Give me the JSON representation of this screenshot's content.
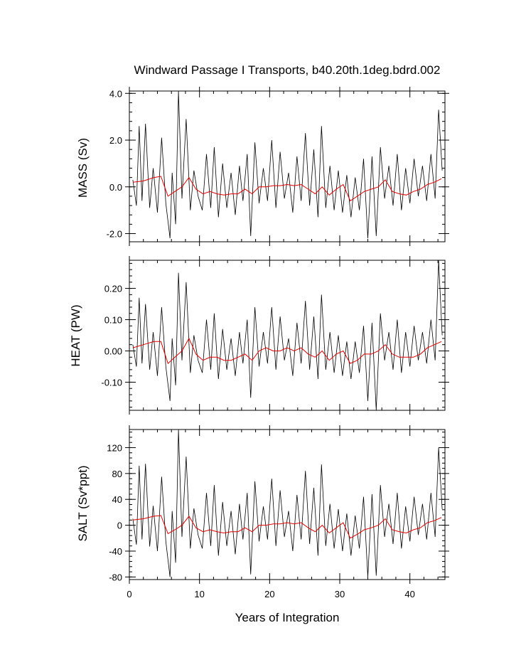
{
  "figure": {
    "title": "Windward Passage I Transports, b40.20th.1deg.bdrd.002",
    "xlabel": "Years of Integration",
    "colors": {
      "raw": "#000000",
      "smooth": "#e00000"
    }
  },
  "chart_data": [
    {
      "type": "line",
      "ylabel": "MASS (Sv)",
      "xlim": [
        0,
        45
      ],
      "ylim": [
        -2.35,
        4.1
      ],
      "xticks": [
        0,
        10,
        20,
        30,
        40
      ],
      "yticks": [
        -2.0,
        0.0,
        2.0,
        4.0
      ],
      "ytick_labels": [
        "-2.0",
        "0.0",
        "2.0",
        "4.0"
      ],
      "show_xtick_labels": false,
      "series": [
        {
          "role": "monthly",
          "x": [
            0.5,
            1.0,
            1.4,
            1.8,
            2.3,
            2.9,
            3.4,
            4.0,
            4.6,
            5.2,
            5.8,
            6.1,
            6.6,
            7.0,
            7.5,
            8.1,
            8.7,
            9.2,
            9.8,
            10.4,
            11.0,
            11.6,
            12.1,
            12.7,
            13.3,
            13.9,
            14.5,
            15.1,
            15.7,
            16.2,
            16.8,
            17.3,
            17.9,
            18.5,
            19.1,
            19.7,
            20.3,
            20.9,
            21.5,
            22.1,
            22.7,
            23.3,
            23.9,
            24.5,
            25.1,
            25.7,
            26.3,
            26.9,
            27.4,
            28.0,
            28.6,
            29.2,
            29.8,
            30.4,
            31.0,
            31.6,
            32.2,
            32.8,
            33.4,
            34.0,
            34.6,
            35.2,
            35.8,
            36.4,
            37.0,
            37.6,
            38.2,
            38.8,
            39.4,
            40.0,
            40.6,
            41.2,
            41.8,
            42.4,
            43.0,
            43.6,
            44.1,
            44.6
          ],
          "values": [
            0.3,
            -0.8,
            2.6,
            -0.6,
            2.7,
            -0.9,
            0.8,
            -1.1,
            2.1,
            -0.7,
            -2.2,
            0.6,
            -1.6,
            4.1,
            -0.5,
            2.9,
            -1.0,
            0.7,
            -0.4,
            -1.0,
            1.4,
            -0.9,
            1.7,
            -1.3,
            1.0,
            -0.9,
            0.6,
            -1.2,
            0.9,
            -0.6,
            1.4,
            -2.1,
            1.9,
            -0.7,
            0.8,
            -0.6,
            2.0,
            -0.9,
            1.5,
            -0.5,
            0.6,
            -1.1,
            1.3,
            -0.6,
            2.3,
            -0.8,
            1.6,
            -1.3,
            2.6,
            -0.9,
            0.9,
            -1.0,
            0.7,
            -1.1,
            0.5,
            -1.3,
            0.4,
            -1.0,
            1.2,
            -2.2,
            1.3,
            -2.1,
            1.7,
            -0.5,
            0.9,
            -0.8,
            1.4,
            -1.0,
            0.8,
            -0.7,
            1.2,
            -0.4,
            0.9,
            -0.6,
            1.4,
            -0.5,
            3.3,
            0.7
          ]
        },
        {
          "role": "annual-mean",
          "x": [
            0.5,
            2.0,
            3.5,
            4.5,
            5.5,
            6.5,
            7.5,
            8.5,
            9.5,
            10.5,
            11.5,
            12.5,
            13.5,
            14.5,
            15.5,
            16.5,
            17.5,
            18.5,
            19.5,
            20.5,
            21.5,
            22.5,
            23.5,
            24.5,
            25.5,
            26.5,
            27.5,
            28.5,
            29.5,
            30.5,
            31.5,
            32.5,
            33.5,
            34.5,
            35.5,
            36.5,
            37.5,
            38.5,
            39.5,
            40.5,
            41.5,
            42.5,
            43.5,
            44.5
          ],
          "values": [
            0.2,
            0.25,
            0.4,
            0.45,
            -0.4,
            -0.2,
            0.0,
            0.4,
            -0.1,
            -0.3,
            -0.2,
            -0.3,
            -0.35,
            -0.3,
            -0.3,
            -0.1,
            -0.3,
            0.0,
            0.0,
            0.05,
            0.05,
            0.1,
            0.05,
            0.1,
            -0.1,
            -0.3,
            0.0,
            -0.35,
            -0.1,
            0.1,
            -0.6,
            -0.4,
            -0.2,
            -0.1,
            0.0,
            0.3,
            -0.2,
            -0.3,
            -0.35,
            -0.2,
            -0.1,
            0.1,
            0.2,
            0.35
          ]
        }
      ]
    },
    {
      "type": "line",
      "ylabel": "HEAT (PW)",
      "xlim": [
        0,
        45
      ],
      "ylim": [
        -0.19,
        0.29
      ],
      "xticks": [
        0,
        10,
        20,
        30,
        40
      ],
      "yticks": [
        -0.1,
        0.0,
        0.1,
        0.2
      ],
      "ytick_labels": [
        "-0.10",
        "0.00",
        "0.10",
        "0.20"
      ],
      "show_xtick_labels": false,
      "series": [
        {
          "role": "monthly",
          "x": [
            0.5,
            1.0,
            1.4,
            1.8,
            2.3,
            2.9,
            3.4,
            4.0,
            4.6,
            5.2,
            5.8,
            6.1,
            6.6,
            7.0,
            7.5,
            8.1,
            8.7,
            9.2,
            9.8,
            10.4,
            11.0,
            11.6,
            12.1,
            12.7,
            13.3,
            13.9,
            14.5,
            15.1,
            15.7,
            16.2,
            16.8,
            17.3,
            17.9,
            18.5,
            19.1,
            19.7,
            20.3,
            20.9,
            21.5,
            22.1,
            22.7,
            23.3,
            23.9,
            24.5,
            25.1,
            25.7,
            26.3,
            26.9,
            27.4,
            28.0,
            28.6,
            29.2,
            29.8,
            30.4,
            31.0,
            31.6,
            32.2,
            32.8,
            33.4,
            34.0,
            34.6,
            35.2,
            35.8,
            36.4,
            37.0,
            37.6,
            38.2,
            38.8,
            39.4,
            40.0,
            40.6,
            41.2,
            41.8,
            42.4,
            43.0,
            43.6,
            44.1,
            44.6
          ],
          "values": [
            0.02,
            -0.05,
            0.17,
            -0.04,
            0.15,
            -0.06,
            0.06,
            -0.08,
            0.14,
            -0.05,
            -0.16,
            0.04,
            -0.11,
            0.25,
            -0.03,
            0.22,
            -0.07,
            0.05,
            -0.03,
            -0.07,
            0.1,
            -0.06,
            0.12,
            -0.09,
            0.07,
            -0.06,
            0.04,
            -0.08,
            0.06,
            -0.04,
            0.1,
            -0.15,
            0.14,
            -0.05,
            0.06,
            -0.04,
            0.14,
            -0.06,
            0.11,
            -0.03,
            0.04,
            -0.08,
            0.09,
            -0.04,
            0.16,
            -0.06,
            0.11,
            -0.09,
            0.18,
            -0.06,
            0.06,
            -0.07,
            0.05,
            -0.08,
            0.03,
            -0.09,
            0.03,
            -0.07,
            0.08,
            -0.16,
            0.09,
            -0.19,
            0.12,
            -0.03,
            0.06,
            -0.06,
            0.1,
            -0.07,
            0.06,
            -0.05,
            0.08,
            -0.03,
            0.06,
            -0.04,
            0.1,
            -0.03,
            0.29,
            0.05
          ]
        },
        {
          "role": "annual-mean",
          "x": [
            0.5,
            2.0,
            3.5,
            4.5,
            5.5,
            6.5,
            7.5,
            8.5,
            9.5,
            10.5,
            11.5,
            12.5,
            13.5,
            14.5,
            15.5,
            16.5,
            17.5,
            18.5,
            19.5,
            20.5,
            21.5,
            22.5,
            23.5,
            24.5,
            25.5,
            26.5,
            27.5,
            28.5,
            29.5,
            30.5,
            31.5,
            32.5,
            33.5,
            34.5,
            35.5,
            36.5,
            37.5,
            38.5,
            39.5,
            40.5,
            41.5,
            42.5,
            43.5,
            44.5
          ],
          "values": [
            0.01,
            0.02,
            0.03,
            0.03,
            -0.04,
            -0.02,
            0.0,
            0.04,
            -0.01,
            -0.03,
            -0.02,
            -0.02,
            -0.03,
            -0.03,
            -0.02,
            -0.01,
            -0.03,
            0.0,
            0.01,
            0.0,
            0.0,
            0.01,
            0.0,
            0.01,
            -0.01,
            -0.02,
            0.0,
            -0.03,
            -0.01,
            0.0,
            -0.04,
            -0.03,
            -0.01,
            -0.01,
            0.0,
            0.02,
            -0.01,
            -0.02,
            -0.02,
            -0.02,
            -0.01,
            0.01,
            0.02,
            0.03
          ]
        }
      ]
    },
    {
      "type": "line",
      "ylabel": "SALT (Sv*ppt)",
      "xlim": [
        0,
        45
      ],
      "ylim": [
        -84,
        148
      ],
      "xticks": [
        0,
        10,
        20,
        30,
        40
      ],
      "yticks": [
        -80,
        -40,
        0,
        40,
        80,
        120
      ],
      "ytick_labels": [
        "-80",
        "-40",
        "0",
        "40",
        "80",
        "120"
      ],
      "show_xtick_labels": true,
      "xtick_labels": [
        "0",
        "10",
        "20",
        "30",
        "40"
      ],
      "series": [
        {
          "role": "monthly",
          "x": [
            0.5,
            1.0,
            1.4,
            1.8,
            2.3,
            2.9,
            3.4,
            4.0,
            4.6,
            5.2,
            5.8,
            6.1,
            6.6,
            7.0,
            7.5,
            8.1,
            8.7,
            9.2,
            9.8,
            10.4,
            11.0,
            11.6,
            12.1,
            12.7,
            13.3,
            13.9,
            14.5,
            15.1,
            15.7,
            16.2,
            16.8,
            17.3,
            17.9,
            18.5,
            19.1,
            19.7,
            20.3,
            20.9,
            21.5,
            22.1,
            22.7,
            23.3,
            23.9,
            24.5,
            25.1,
            25.7,
            26.3,
            26.9,
            27.4,
            28.0,
            28.6,
            29.2,
            29.8,
            30.4,
            31.0,
            31.6,
            32.2,
            32.8,
            33.4,
            34.0,
            34.6,
            35.2,
            35.8,
            36.4,
            37.0,
            37.6,
            38.2,
            38.8,
            39.4,
            40.0,
            40.6,
            41.2,
            41.8,
            42.4,
            43.0,
            43.6,
            44.1,
            44.6
          ],
          "values": [
            10,
            -30,
            92,
            -22,
            95,
            -33,
            30,
            -40,
            75,
            -25,
            -80,
            22,
            -58,
            148,
            -18,
            106,
            -36,
            26,
            -15,
            -36,
            50,
            -32,
            62,
            -47,
            36,
            -32,
            22,
            -45,
            33,
            -22,
            50,
            -76,
            68,
            -25,
            29,
            -22,
            72,
            -32,
            54,
            -18,
            22,
            -40,
            47,
            -22,
            84,
            -29,
            58,
            -47,
            94,
            -32,
            33,
            -36,
            25,
            -40,
            18,
            -47,
            15,
            -36,
            44,
            -80,
            48,
            -78,
            62,
            -18,
            33,
            -29,
            50,
            -36,
            29,
            -25,
            44,
            -15,
            33,
            -22,
            50,
            -18,
            120,
            25
          ]
        },
        {
          "role": "annual-mean",
          "x": [
            0.5,
            2.0,
            3.5,
            4.5,
            5.5,
            6.5,
            7.5,
            8.5,
            9.5,
            10.5,
            11.5,
            12.5,
            13.5,
            14.5,
            15.5,
            16.5,
            17.5,
            18.5,
            19.5,
            20.5,
            21.5,
            22.5,
            23.5,
            24.5,
            25.5,
            26.5,
            27.5,
            28.5,
            29.5,
            30.5,
            31.5,
            32.5,
            33.5,
            34.5,
            35.5,
            36.5,
            37.5,
            38.5,
            39.5,
            40.5,
            41.5,
            42.5,
            43.5,
            44.5
          ],
          "values": [
            8,
            10,
            14,
            15,
            -13,
            -7,
            0,
            14,
            -4,
            -10,
            -7,
            -10,
            -12,
            -10,
            -10,
            -4,
            -10,
            0,
            0,
            2,
            2,
            4,
            2,
            4,
            -4,
            -10,
            0,
            -12,
            -4,
            4,
            -20,
            -14,
            -7,
            -4,
            0,
            10,
            -7,
            -10,
            -12,
            -7,
            -4,
            4,
            7,
            12
          ]
        }
      ]
    }
  ]
}
